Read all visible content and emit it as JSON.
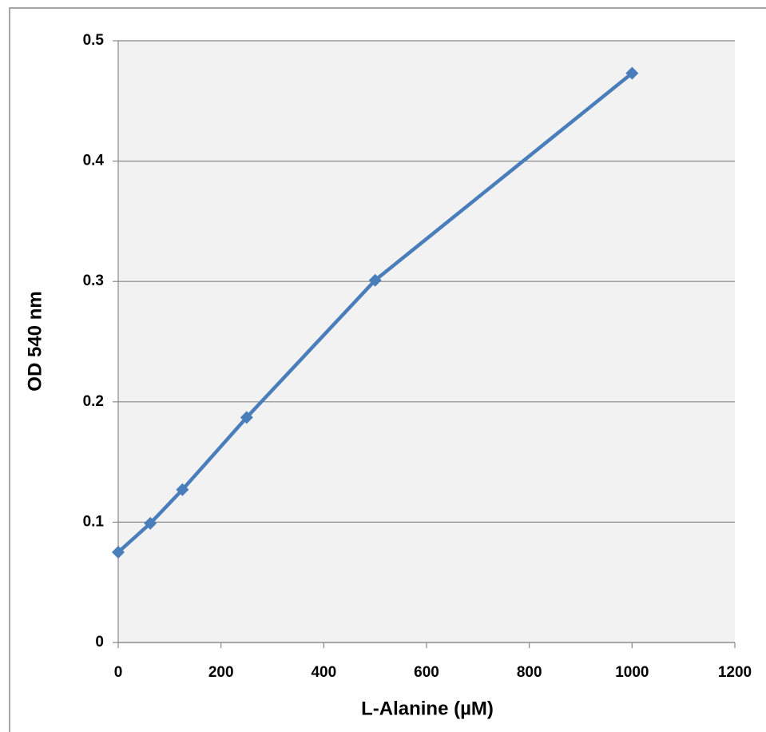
{
  "chart_data": {
    "type": "line",
    "x_label": "L-Alanine (µM)",
    "y_label": "OD 540 nm",
    "x": [
      0,
      62.5,
      125,
      250,
      500,
      1000
    ],
    "series": [
      {
        "name": "OD",
        "color": "#4a7ebb",
        "values": [
          0.075,
          0.099,
          0.127,
          0.187,
          0.301,
          0.473
        ]
      }
    ],
    "xlim": [
      0,
      1200
    ],
    "xticks": [
      0,
      200,
      400,
      600,
      800,
      1000,
      1200
    ],
    "ylim": [
      0,
      0.5
    ],
    "yticks": [
      0,
      0.1,
      0.2,
      0.3,
      0.4,
      0.5
    ],
    "grid": true
  }
}
